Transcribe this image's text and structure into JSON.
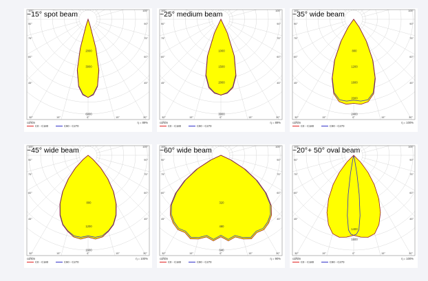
{
  "colors": {
    "fill": "#ffff00",
    "c0": "#e02020",
    "c90": "#3030c8",
    "outline": "#333333",
    "grid": "#d8d8d8",
    "background": "#f3f4f8"
  },
  "chart_data": [
    {
      "type": "polar",
      "title": "~15° spot beam",
      "units_label": "cd/klm",
      "legend": [
        "C0 - C180",
        "C90 - C270"
      ],
      "efficiency_label": "η = 89%",
      "r_max": 6000,
      "radial_labels": [
        {
          "text": "2000",
          "r": 2000
        },
        {
          "text": "3000",
          "r": 3000
        },
        {
          "text": "6000",
          "r": 6000
        }
      ],
      "curves": {
        "c0": {
          "deg": [
            0,
            4,
            8,
            12,
            15,
            18,
            22
          ],
          "r": [
            4950,
            4800,
            4300,
            3300,
            1900,
            400,
            0
          ]
        },
        "c90": {
          "deg": [
            0,
            4,
            8,
            12,
            15,
            18,
            22
          ],
          "r": [
            4950,
            4750,
            4250,
            3250,
            1850,
            380,
            0
          ]
        }
      }
    },
    {
      "type": "polar",
      "title": "~25° medium beam",
      "units_label": "cd/klm",
      "legend": [
        "C0 - C180",
        "C90 - C270"
      ],
      "efficiency_label": "η = 89%",
      "r_max": 3000,
      "radial_labels": [
        {
          "text": "1000",
          "r": 1000
        },
        {
          "text": "1500",
          "r": 1500
        },
        {
          "text": "2000",
          "r": 2000
        },
        {
          "text": "3000",
          "r": 3000
        }
      ],
      "curves": {
        "c0": {
          "deg": [
            0,
            5,
            10,
            15,
            20,
            25,
            30
          ],
          "r": [
            2400,
            2350,
            2200,
            1850,
            1250,
            500,
            0
          ]
        },
        "c90": {
          "deg": [
            0,
            5,
            10,
            15,
            20,
            25,
            30
          ],
          "r": [
            2400,
            2330,
            2170,
            1820,
            1220,
            480,
            0
          ]
        }
      }
    },
    {
      "type": "polar",
      "title": "~35° wide beam",
      "units_label": "cd/klm",
      "legend": [
        "C0 - C180",
        "C90 - C270"
      ],
      "efficiency_label": "η = 100%",
      "r_max": 2400,
      "radial_labels": [
        {
          "text": "800",
          "r": 800
        },
        {
          "text": "1200",
          "r": 1200
        },
        {
          "text": "1600",
          "r": 1600
        },
        {
          "text": "2000",
          "r": 2000
        },
        {
          "text": "2400",
          "r": 2400
        }
      ],
      "curves": {
        "c0": {
          "deg": [
            0,
            5,
            10,
            15,
            20,
            25,
            30,
            35,
            40
          ],
          "r": [
            2130,
            2160,
            2120,
            1950,
            1600,
            1150,
            650,
            250,
            0
          ]
        },
        "c90": {
          "deg": [
            0,
            5,
            10,
            15,
            20,
            25,
            30,
            35,
            40
          ],
          "r": [
            2050,
            2080,
            2070,
            1920,
            1580,
            1130,
            630,
            230,
            0
          ]
        }
      }
    },
    {
      "type": "polar",
      "title": "~45° wide beam",
      "units_label": "cd/klm",
      "legend": [
        "C0 - C180",
        "C90 - C270"
      ],
      "efficiency_label": "η = 100%",
      "r_max": 1600,
      "radial_labels": [
        {
          "text": "800",
          "r": 800
        },
        {
          "text": "1200",
          "r": 1200
        },
        {
          "text": "1600",
          "r": 1600
        }
      ],
      "curves": {
        "c0": {
          "deg": [
            0,
            5,
            10,
            15,
            20,
            25,
            30,
            35,
            40,
            45,
            50,
            55
          ],
          "r": [
            1380,
            1420,
            1400,
            1330,
            1250,
            1120,
            950,
            750,
            520,
            300,
            110,
            0
          ]
        },
        "c90": {
          "deg": [
            0,
            5,
            10,
            15,
            20,
            25,
            30,
            35,
            40,
            45,
            50,
            55
          ],
          "r": [
            1360,
            1390,
            1380,
            1320,
            1240,
            1110,
            940,
            740,
            510,
            290,
            100,
            0
          ]
        }
      }
    },
    {
      "type": "polar",
      "title": "~60° wide beam",
      "units_label": "cd/klm",
      "legend": [
        "C0 - C180",
        "C90 - C270"
      ],
      "efficiency_label": "η = 90%",
      "r_max": 640,
      "radial_labels": [
        {
          "text": "320",
          "r": 320
        },
        {
          "text": "480",
          "r": 480
        },
        {
          "text": "640",
          "r": 640
        }
      ],
      "curves": {
        "c0": {
          "deg": [
            0,
            5,
            10,
            15,
            20,
            25,
            30,
            35,
            40,
            45,
            50,
            55,
            60,
            65,
            70
          ],
          "r": [
            550,
            580,
            560,
            585,
            600,
            575,
            580,
            560,
            530,
            480,
            400,
            300,
            190,
            80,
            0
          ]
        },
        "c90": {
          "deg": [
            0,
            5,
            10,
            15,
            20,
            25,
            30,
            35,
            40,
            45,
            50,
            55,
            60,
            65,
            70
          ],
          "r": [
            540,
            570,
            550,
            575,
            590,
            565,
            570,
            550,
            520,
            470,
            390,
            290,
            180,
            70,
            0
          ]
        }
      }
    },
    {
      "type": "polar",
      "title": "~20°+ 50° oval beam",
      "units_label": "cd/klm",
      "legend": [
        "C0 - C180",
        "C90 - C270"
      ],
      "efficiency_label": "η = 100%",
      "r_max": 1800,
      "radial_labels": [
        {
          "text": "1600",
          "r": 1600
        },
        {
          "text": "1400",
          "r": 1400
        }
      ],
      "curves": {
        "c0": {
          "deg": [
            0,
            5,
            10,
            15,
            20,
            25,
            30,
            35,
            40,
            45,
            50
          ],
          "r": [
            1520,
            1560,
            1580,
            1540,
            1400,
            1200,
            950,
            680,
            420,
            180,
            0
          ]
        },
        "c90": {
          "deg": [
            0,
            2,
            4,
            6,
            8,
            10,
            12,
            14
          ],
          "r": [
            1520,
            1500,
            1420,
            1150,
            750,
            350,
            80,
            0
          ]
        }
      }
    }
  ]
}
